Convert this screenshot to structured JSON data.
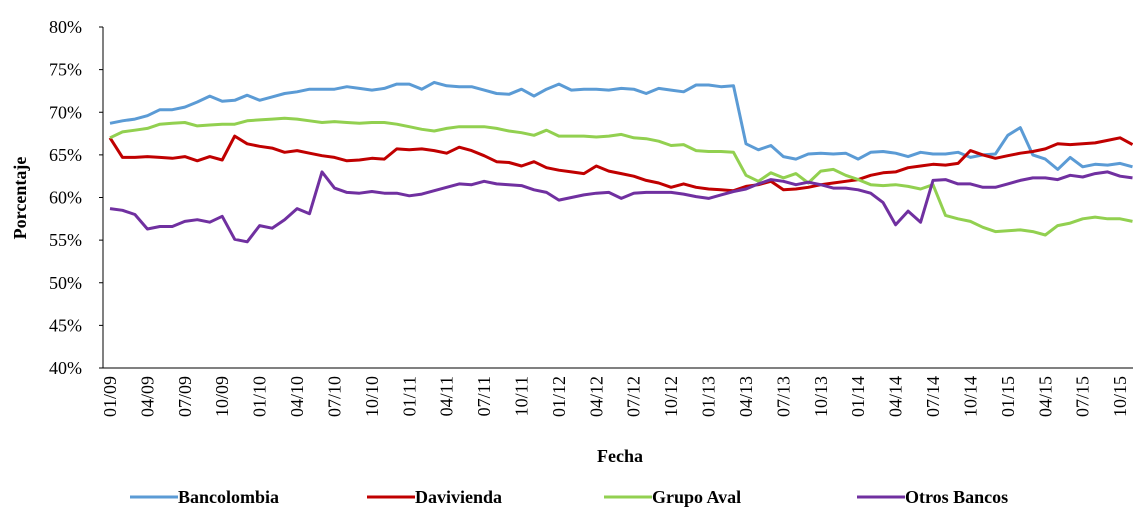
{
  "chart_data": {
    "type": "line",
    "x_label": "Fecha",
    "y_label": "Porcentaje",
    "categories": [
      "01/09",
      null,
      null,
      "04/09",
      null,
      null,
      "07/09",
      null,
      null,
      "10/09",
      null,
      null,
      "01/10",
      null,
      null,
      "04/10",
      null,
      null,
      "07/10",
      null,
      null,
      "10/10",
      null,
      null,
      "01/11",
      null,
      null,
      "04/11",
      null,
      null,
      "07/11",
      null,
      null,
      "10/11",
      null,
      null,
      "01/12",
      null,
      null,
      "04/12",
      null,
      null,
      "07/12",
      null,
      null,
      "10/12",
      null,
      null,
      "01/13",
      null,
      null,
      "04/13",
      null,
      null,
      "07/13",
      null,
      null,
      "10/13",
      null,
      null,
      "01/14",
      null,
      null,
      "04/14",
      null,
      null,
      "07/14",
      null,
      null,
      "10/14",
      null,
      null,
      "01/15",
      null,
      null,
      "04/15",
      null,
      null,
      "07/15",
      null,
      null,
      "10/15",
      null
    ],
    "series": [
      {
        "name": "Bancolombia",
        "color": "#5b9bd5",
        "values": [
          68.7,
          69.0,
          69.2,
          69.6,
          70.3,
          70.3,
          70.6,
          71.2,
          71.9,
          71.3,
          71.4,
          72.0,
          71.4,
          71.8,
          72.2,
          72.4,
          72.7,
          72.7,
          72.7,
          73.0,
          72.8,
          72.6,
          72.8,
          73.3,
          73.3,
          72.7,
          73.5,
          73.1,
          73.0,
          73.0,
          72.6,
          72.2,
          72.1,
          72.7,
          71.9,
          72.7,
          73.3,
          72.6,
          72.7,
          72.7,
          72.6,
          72.8,
          72.7,
          72.2,
          72.8,
          72.6,
          72.4,
          73.2,
          73.2,
          73.0,
          73.1,
          66.3,
          65.6,
          66.1,
          64.8,
          64.5,
          65.1,
          65.2,
          65.1,
          65.2,
          64.5,
          65.3,
          65.4,
          65.2,
          64.8,
          65.3,
          65.1,
          65.1,
          65.3,
          64.7,
          65.0,
          65.1,
          67.3,
          68.2,
          65.0,
          64.5,
          63.3,
          64.7,
          63.6,
          63.9,
          63.8,
          64.0,
          63.6
        ]
      },
      {
        "name": "Davivienda",
        "color": "#c00000",
        "values": [
          67.0,
          64.7,
          64.7,
          64.8,
          64.7,
          64.6,
          64.8,
          64.3,
          64.8,
          64.4,
          67.2,
          66.3,
          66.0,
          65.8,
          65.3,
          65.5,
          65.2,
          64.9,
          64.7,
          64.3,
          64.4,
          64.6,
          64.5,
          65.7,
          65.6,
          65.7,
          65.5,
          65.2,
          65.9,
          65.5,
          64.9,
          64.2,
          64.1,
          63.7,
          64.2,
          63.5,
          63.2,
          63.0,
          62.8,
          63.7,
          63.1,
          62.8,
          62.5,
          62.0,
          61.7,
          61.2,
          61.6,
          61.2,
          61.0,
          60.9,
          60.8,
          61.3,
          61.5,
          61.9,
          60.9,
          61.0,
          61.2,
          61.5,
          61.7,
          61.9,
          62.1,
          62.6,
          62.9,
          63.0,
          63.5,
          63.7,
          63.9,
          63.8,
          64.0,
          65.5,
          65.0,
          64.6,
          64.9,
          65.2,
          65.4,
          65.7,
          66.3,
          66.2,
          66.3,
          66.4,
          66.7,
          67.0,
          66.2
        ]
      },
      {
        "name": "Grupo Aval",
        "color": "#92d050",
        "values": [
          67.0,
          67.7,
          67.9,
          68.1,
          68.6,
          68.7,
          68.8,
          68.4,
          68.5,
          68.6,
          68.6,
          69.0,
          69.1,
          69.2,
          69.3,
          69.2,
          69.0,
          68.8,
          68.9,
          68.8,
          68.7,
          68.8,
          68.8,
          68.6,
          68.3,
          68.0,
          67.8,
          68.1,
          68.3,
          68.3,
          68.3,
          68.1,
          67.8,
          67.6,
          67.3,
          67.9,
          67.2,
          67.2,
          67.2,
          67.1,
          67.2,
          67.4,
          67.0,
          66.9,
          66.6,
          66.1,
          66.2,
          65.5,
          65.4,
          65.4,
          65.3,
          62.6,
          61.9,
          62.9,
          62.3,
          62.8,
          61.7,
          63.1,
          63.3,
          62.6,
          62.1,
          61.5,
          61.4,
          61.5,
          61.3,
          61.0,
          61.5,
          57.9,
          57.5,
          57.2,
          56.5,
          56.0,
          56.1,
          56.2,
          56.0,
          55.6,
          56.7,
          57.0,
          57.5,
          57.7,
          57.5,
          57.5,
          57.2
        ]
      },
      {
        "name": "Otros Bancos",
        "color": "#7030a0",
        "values": [
          58.7,
          58.5,
          58.0,
          56.3,
          56.6,
          56.6,
          57.2,
          57.4,
          57.1,
          57.8,
          55.1,
          54.8,
          56.7,
          56.4,
          57.4,
          58.7,
          58.1,
          63.0,
          61.1,
          60.6,
          60.5,
          60.7,
          60.5,
          60.5,
          60.2,
          60.4,
          60.8,
          61.2,
          61.6,
          61.5,
          61.9,
          61.6,
          61.5,
          61.4,
          60.9,
          60.6,
          59.7,
          60.0,
          60.3,
          60.5,
          60.6,
          59.9,
          60.5,
          60.6,
          60.6,
          60.6,
          60.4,
          60.1,
          59.9,
          60.3,
          60.7,
          61.0,
          61.6,
          62.1,
          61.9,
          61.5,
          61.8,
          61.5,
          61.1,
          61.1,
          60.9,
          60.5,
          59.4,
          56.8,
          58.4,
          57.1,
          62.0,
          62.1,
          61.6,
          61.6,
          61.2,
          61.2,
          61.6,
          62.0,
          62.3,
          62.3,
          62.1,
          62.6,
          62.4,
          62.8,
          63.0,
          62.5,
          62.3
        ]
      }
    ],
    "ylim": [
      40,
      80
    ],
    "yticks": [
      {
        "value": 40,
        "label": "40%"
      },
      {
        "value": 45,
        "label": "45%"
      },
      {
        "value": 50,
        "label": "50%"
      },
      {
        "value": 55,
        "label": "55%"
      },
      {
        "value": 60,
        "label": "60%"
      },
      {
        "value": 65,
        "label": "65%"
      },
      {
        "value": 70,
        "label": "70%"
      },
      {
        "value": 75,
        "label": "75%"
      },
      {
        "value": 80,
        "label": "80%"
      }
    ],
    "grid": false,
    "legend": "bottom"
  }
}
